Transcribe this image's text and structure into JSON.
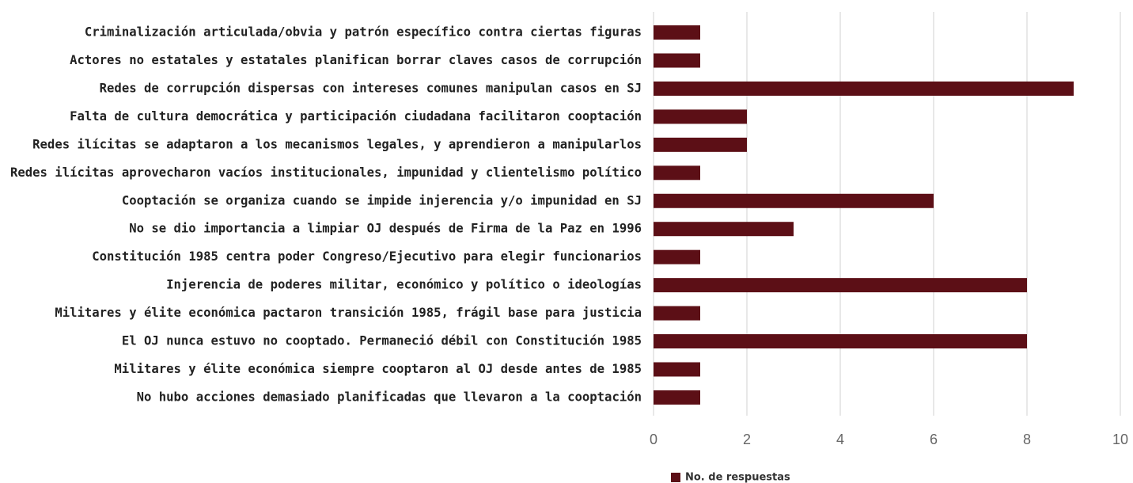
{
  "chart_data": {
    "type": "bar",
    "orientation": "horizontal",
    "categories": [
      "Criminalización articulada/obvia y patrón específico contra ciertas figuras",
      "Actores no estatales y estatales planifican borrar claves casos de corrupción",
      "Redes de corrupción dispersas con intereses comunes manipulan casos en SJ",
      "Falta de cultura democrática y participación ciudadana facilitaron cooptación",
      "Redes ilícitas se adaptaron a los mecanismos legales, y aprendieron a manipularlos",
      "Redes ilícitas aprovecharon vacíos institucionales, impunidad y clientelismo político",
      "Cooptación se organiza cuando se impide injerencia y/o impunidad en SJ",
      "No se dio importancia a limpiar OJ después de Firma de la Paz en 1996",
      "Constitución 1985 centra poder Congreso/Ejecutivo para elegir funcionarios",
      "Injerencia de poderes militar, económico y político o ideologías",
      "Militares y élite económica pactaron transición 1985, frágil base para justicia",
      "El OJ nunca estuvo no cooptado. Permaneció débil con Constitución 1985",
      "Militares y élite económica siempre cooptaron al OJ desde antes de 1985",
      "No hubo acciones demasiado planificadas que llevaron a la cooptación"
    ],
    "series": [
      {
        "name": "No. de respuestas",
        "color": "#5c0f16",
        "values": [
          1,
          1,
          9,
          2,
          2,
          1,
          6,
          3,
          1,
          8,
          1,
          8,
          1,
          1
        ]
      }
    ],
    "xlim": [
      0,
      10
    ],
    "xticks": [
      0,
      2,
      4,
      6,
      8,
      10
    ],
    "grid": true,
    "legend": "bottom"
  }
}
